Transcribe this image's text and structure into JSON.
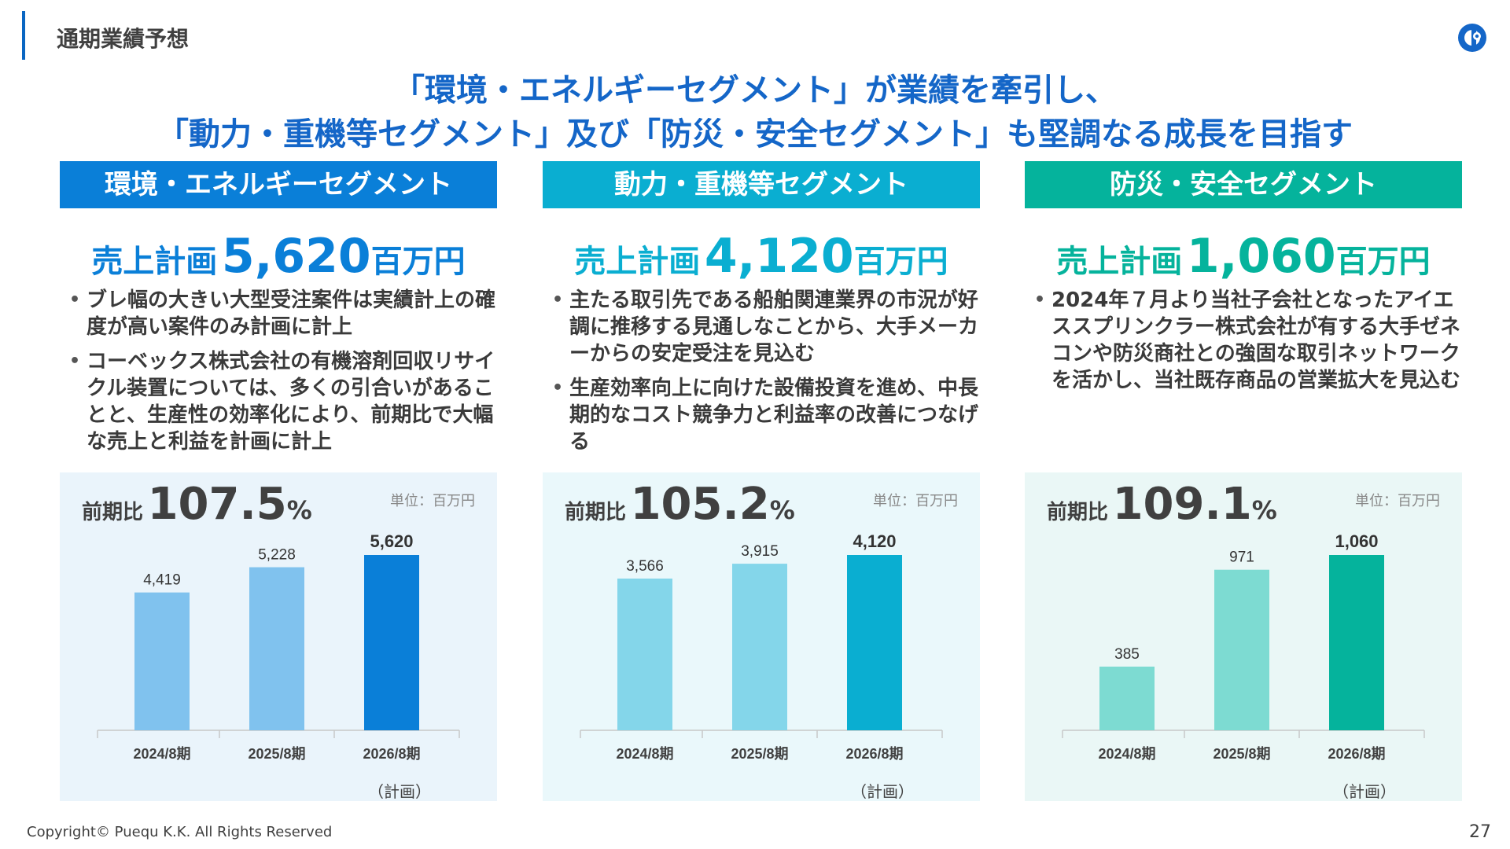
{
  "header": {
    "title": "通期業績予想"
  },
  "headline": {
    "line1": "「環境・エネルギーセグメント」が業績を牽引し、",
    "line2": "「動力・重機等セグメント」及び「防災・安全セグメント」も堅調なる成長を目指す"
  },
  "colors": {
    "env": "#0a7fd8",
    "env_light": "#80c2ee",
    "env_bg": "#eaf4fb",
    "power": "#0aaed1",
    "power_light": "#84d6ea",
    "power_bg": "#eaf8fb",
    "safety": "#05b39c",
    "safety_light": "#7ddbd2",
    "safety_bg": "#eaf7f6"
  },
  "segments": [
    {
      "name": "環境・エネルギーセグメント",
      "sales_label": "売上計画",
      "sales_value": "5,620",
      "sales_unit": "百万円",
      "bullets": [
        "ブレ幅の大きい大型受注案件は実績計上の確度が高い案件のみ計画に計上",
        "コーベックス株式会社の有機溶剤回収リサイクル装置については、多くの引合いがあることと、生産性の効率化により、前期比で大幅な売上と利益を計画に計上"
      ],
      "ratio_label": "前期比",
      "ratio_value": "107.5",
      "ratio_unit": "%",
      "unit_note": "単位：百万円",
      "plan_note": "（計画）"
    },
    {
      "name": "動力・重機等セグメント",
      "sales_label": "売上計画",
      "sales_value": "4,120",
      "sales_unit": "百万円",
      "bullets": [
        "主たる取引先である船舶関連業界の市況が好調に推移する見通しなことから、大手メーカーからの安定受注を見込む",
        "生産効率向上に向けた設備投資を進め、中長期的なコスト競争力と利益率の改善につなげる"
      ],
      "ratio_label": "前期比",
      "ratio_value": "105.2",
      "ratio_unit": "%",
      "unit_note": "単位：百万円",
      "plan_note": "（計画）"
    },
    {
      "name": "防災・安全セグメント",
      "sales_label": "売上計画",
      "sales_value": "1,060",
      "sales_unit": "百万円",
      "bullets": [
        "2024年７月より当社子会社となったアイエススプリンクラー株式会社が有する大手ゼネコンや防災商社との強固な取引ネットワークを活かし、当社既存商品の営業拡大を見込む"
      ],
      "ratio_label": "前期比",
      "ratio_value": "109.1",
      "ratio_unit": "%",
      "unit_note": "単位：百万円",
      "plan_note": "（計画）"
    }
  ],
  "chart_data": [
    {
      "type": "bar",
      "categories": [
        "2024/8期",
        "2025/8期",
        "2026/8期"
      ],
      "values": [
        4419,
        5228,
        5620
      ],
      "labels": [
        "4,419",
        "5,228",
        "5,620"
      ],
      "highlight_index": 2
    },
    {
      "type": "bar",
      "categories": [
        "2024/8期",
        "2025/8期",
        "2026/8期"
      ],
      "values": [
        3566,
        3915,
        4120
      ],
      "labels": [
        "3,566",
        "3,915",
        "4,120"
      ],
      "highlight_index": 2
    },
    {
      "type": "bar",
      "categories": [
        "2024/8期",
        "2025/8期",
        "2026/8期"
      ],
      "values": [
        385,
        971,
        1060
      ],
      "labels": [
        "385",
        "971",
        "1,060"
      ],
      "highlight_index": 2
    }
  ],
  "footer": {
    "copyright": "Copyright© Puequ K.K. All Rights Reserved",
    "page": "27"
  }
}
